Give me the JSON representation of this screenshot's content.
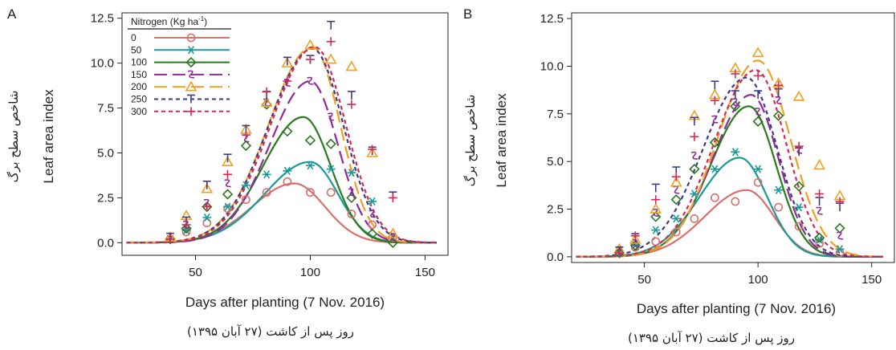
{
  "chart_data": [
    {
      "type": "line",
      "panel_label": "A",
      "xlabel": "Days after planting (7 Nov. 2016)",
      "xlabel_fa": "روز پس از کاشت (۲۷ آبان ۱۳۹۵)",
      "ylabel": "Leaf area index",
      "ylabel_fa": "شاخص سطح برگ",
      "xlim": [
        18,
        160
      ],
      "ylim": [
        -0.7,
        12.8
      ],
      "x_ticks": [
        50,
        100,
        150
      ],
      "y_ticks": [
        0.0,
        2.5,
        5.0,
        7.5,
        10.0,
        12.5
      ],
      "x_tick_labels": [
        "50",
        "100",
        "150"
      ],
      "y_tick_labels": [
        "0.0",
        "2.5",
        "5.0",
        "7.5",
        "10.0",
        "12.5"
      ],
      "grid": false,
      "legend": {
        "position": "top-left",
        "title": "Nitrogen (Kg ha",
        "title_sup": "-1",
        "title_end": ")"
      },
      "x_obs": [
        39,
        46,
        55,
        64,
        72,
        81,
        90,
        100,
        109,
        118,
        127,
        136
      ],
      "series": [
        {
          "name": "0",
          "color": "#d9706c",
          "marker": "circle",
          "dash": "solid",
          "fit": {
            "peak": 3.3,
            "tpeak": 93,
            "w1": 26,
            "w2": 19
          },
          "observed": [
            0.2,
            0.6,
            1.1,
            1.9,
            2.4,
            2.8,
            3.4,
            2.8,
            2.8,
            1.6,
            1.0,
            0.3
          ]
        },
        {
          "name": "50",
          "color": "#1a9a9a",
          "marker": "asterisk",
          "dash": "solid",
          "fit": {
            "peak": 4.5,
            "tpeak": 100,
            "w1": 28,
            "w2": 17
          },
          "observed": [
            0.2,
            0.7,
            1.4,
            2.0,
            3.2,
            3.8,
            4.0,
            4.3,
            4.1,
            3.9,
            2.3,
            0.3
          ]
        },
        {
          "name": "100",
          "color": "#2a7a1e",
          "marker": "diamond",
          "dash": "solid",
          "fit": {
            "peak": 7.0,
            "tpeak": 97,
            "w1": 25,
            "w2": 17
          },
          "observed": [
            0.2,
            0.8,
            2.0,
            2.7,
            5.4,
            7.7,
            6.2,
            5.7,
            5.5,
            2.5,
            0.5,
            0.0
          ]
        },
        {
          "name": "150",
          "color": "#8e2a9a",
          "marker": "curl",
          "dash": "longdash",
          "fit": {
            "peak": 9.0,
            "tpeak": 100,
            "w1": 25,
            "w2": 17
          },
          "observed": [
            0.2,
            1.0,
            2.2,
            3.3,
            5.8,
            7.8,
            8.9,
            9.0,
            7.0,
            2.8,
            1.6,
            0.3
          ]
        },
        {
          "name": "200",
          "color": "#f0a020",
          "marker": "triangle",
          "dash": "longdash",
          "fit": {
            "peak": 10.9,
            "tpeak": 101,
            "w1": 27,
            "w2": 17
          },
          "observed": [
            0.3,
            1.5,
            3.0,
            4.5,
            6.3,
            7.8,
            10.0,
            11.0,
            10.2,
            9.8,
            5.0,
            0.5
          ]
        },
        {
          "name": "250",
          "color": "#3d3a8a",
          "marker": "tbar",
          "dash": "shortdash",
          "fit": {
            "peak": 10.8,
            "tpeak": 101,
            "w1": 27,
            "w2": 19
          },
          "observed": [
            0.3,
            1.2,
            3.2,
            4.7,
            6.3,
            8.2,
            10.1,
            10.2,
            12.1,
            8.2,
            5.1,
            2.6
          ]
        },
        {
          "name": "300",
          "color": "#d9284f",
          "marker": "plus",
          "dash": "shortdash",
          "fit": {
            "peak": 10.9,
            "tpeak": 102,
            "w1": 27,
            "w2": 19
          },
          "observed": [
            0.2,
            1.0,
            2.0,
            3.8,
            6.0,
            8.4,
            9.0,
            10.2,
            11.2,
            7.7,
            5.2,
            2.5
          ]
        }
      ]
    },
    {
      "type": "line",
      "panel_label": "B",
      "xlabel": "Days after planting (7 Nov. 2016)",
      "xlabel_fa": "روز پس از کاشت (۲۷ آبان ۱۳۹۵)",
      "ylabel": "Leaf area index",
      "ylabel_fa": "شاخص سطح برگ",
      "xlim": [
        18,
        160
      ],
      "ylim": [
        -0.3,
        12.8
      ],
      "x_ticks": [
        50,
        100,
        150
      ],
      "y_ticks": [
        0.0,
        2.5,
        5.0,
        7.5,
        10.0,
        12.5
      ],
      "x_tick_labels": [
        "50",
        "100",
        "150"
      ],
      "y_tick_labels": [
        "0.0",
        "2.5",
        "5.0",
        "7.5",
        "10.0",
        "12.5"
      ],
      "grid": false,
      "x_obs": [
        39,
        46,
        55,
        64,
        72,
        81,
        90,
        100,
        109,
        118,
        127,
        136
      ],
      "series": [
        {
          "name": "0",
          "color": "#d9706c",
          "marker": "circle",
          "dash": "solid",
          "fit": {
            "peak": 3.5,
            "tpeak": 95,
            "w1": 26,
            "w2": 17
          },
          "observed": [
            0.2,
            0.5,
            0.8,
            1.3,
            2.0,
            3.1,
            2.9,
            3.9,
            2.6,
            1.6,
            0.7,
            0.2
          ]
        },
        {
          "name": "50",
          "color": "#1a9a9a",
          "marker": "asterisk",
          "dash": "solid",
          "fit": {
            "peak": 5.2,
            "tpeak": 92,
            "w1": 25,
            "w2": 17
          },
          "observed": [
            0.2,
            0.6,
            1.4,
            2.0,
            3.3,
            4.6,
            5.5,
            4.6,
            3.5,
            2.6,
            0.9,
            0.4
          ]
        },
        {
          "name": "100",
          "color": "#2a7a1e",
          "marker": "diamond",
          "dash": "solid",
          "fit": {
            "peak": 7.9,
            "tpeak": 96,
            "w1": 24,
            "w2": 17
          },
          "observed": [
            0.2,
            0.6,
            2.1,
            3.0,
            4.6,
            6.0,
            7.9,
            7.1,
            7.4,
            3.7,
            1.0,
            1.5
          ]
        },
        {
          "name": "150",
          "color": "#8e2a9a",
          "marker": "curl",
          "dash": "longdash",
          "fit": {
            "peak": 8.5,
            "tpeak": 97,
            "w1": 24,
            "w2": 17
          },
          "observed": [
            0.3,
            0.7,
            2.3,
            3.5,
            5.3,
            7.2,
            8.1,
            7.6,
            8.2,
            5.6,
            2.4,
            1.1
          ]
        },
        {
          "name": "200",
          "color": "#f0a020",
          "marker": "triangle",
          "dash": "longdash",
          "fit": {
            "peak": 10.3,
            "tpeak": 100,
            "w1": 25,
            "w2": 20
          },
          "observed": [
            0.4,
            0.9,
            2.5,
            3.9,
            7.4,
            8.5,
            9.9,
            10.7,
            9.1,
            8.4,
            4.8,
            3.2
          ]
        },
        {
          "name": "250",
          "color": "#3d3a8a",
          "marker": "tbar",
          "dash": "shortdash",
          "fit": {
            "peak": 9.4,
            "tpeak": 95,
            "w1": 27,
            "w2": 19
          },
          "observed": [
            0.3,
            1.0,
            3.6,
            4.5,
            7.1,
            9.0,
            8.5,
            8.5,
            8.6,
            5.5,
            2.9,
            2.6
          ]
        },
        {
          "name": "300",
          "color": "#d9284f",
          "marker": "plus",
          "dash": "shortdash",
          "fit": {
            "peak": 9.8,
            "tpeak": 99,
            "w1": 26,
            "w2": 19
          },
          "observed": [
            0.2,
            1.1,
            3.0,
            4.2,
            6.3,
            8.2,
            9.6,
            9.5,
            9.0,
            5.8,
            3.3,
            2.9
          ]
        }
      ]
    }
  ]
}
